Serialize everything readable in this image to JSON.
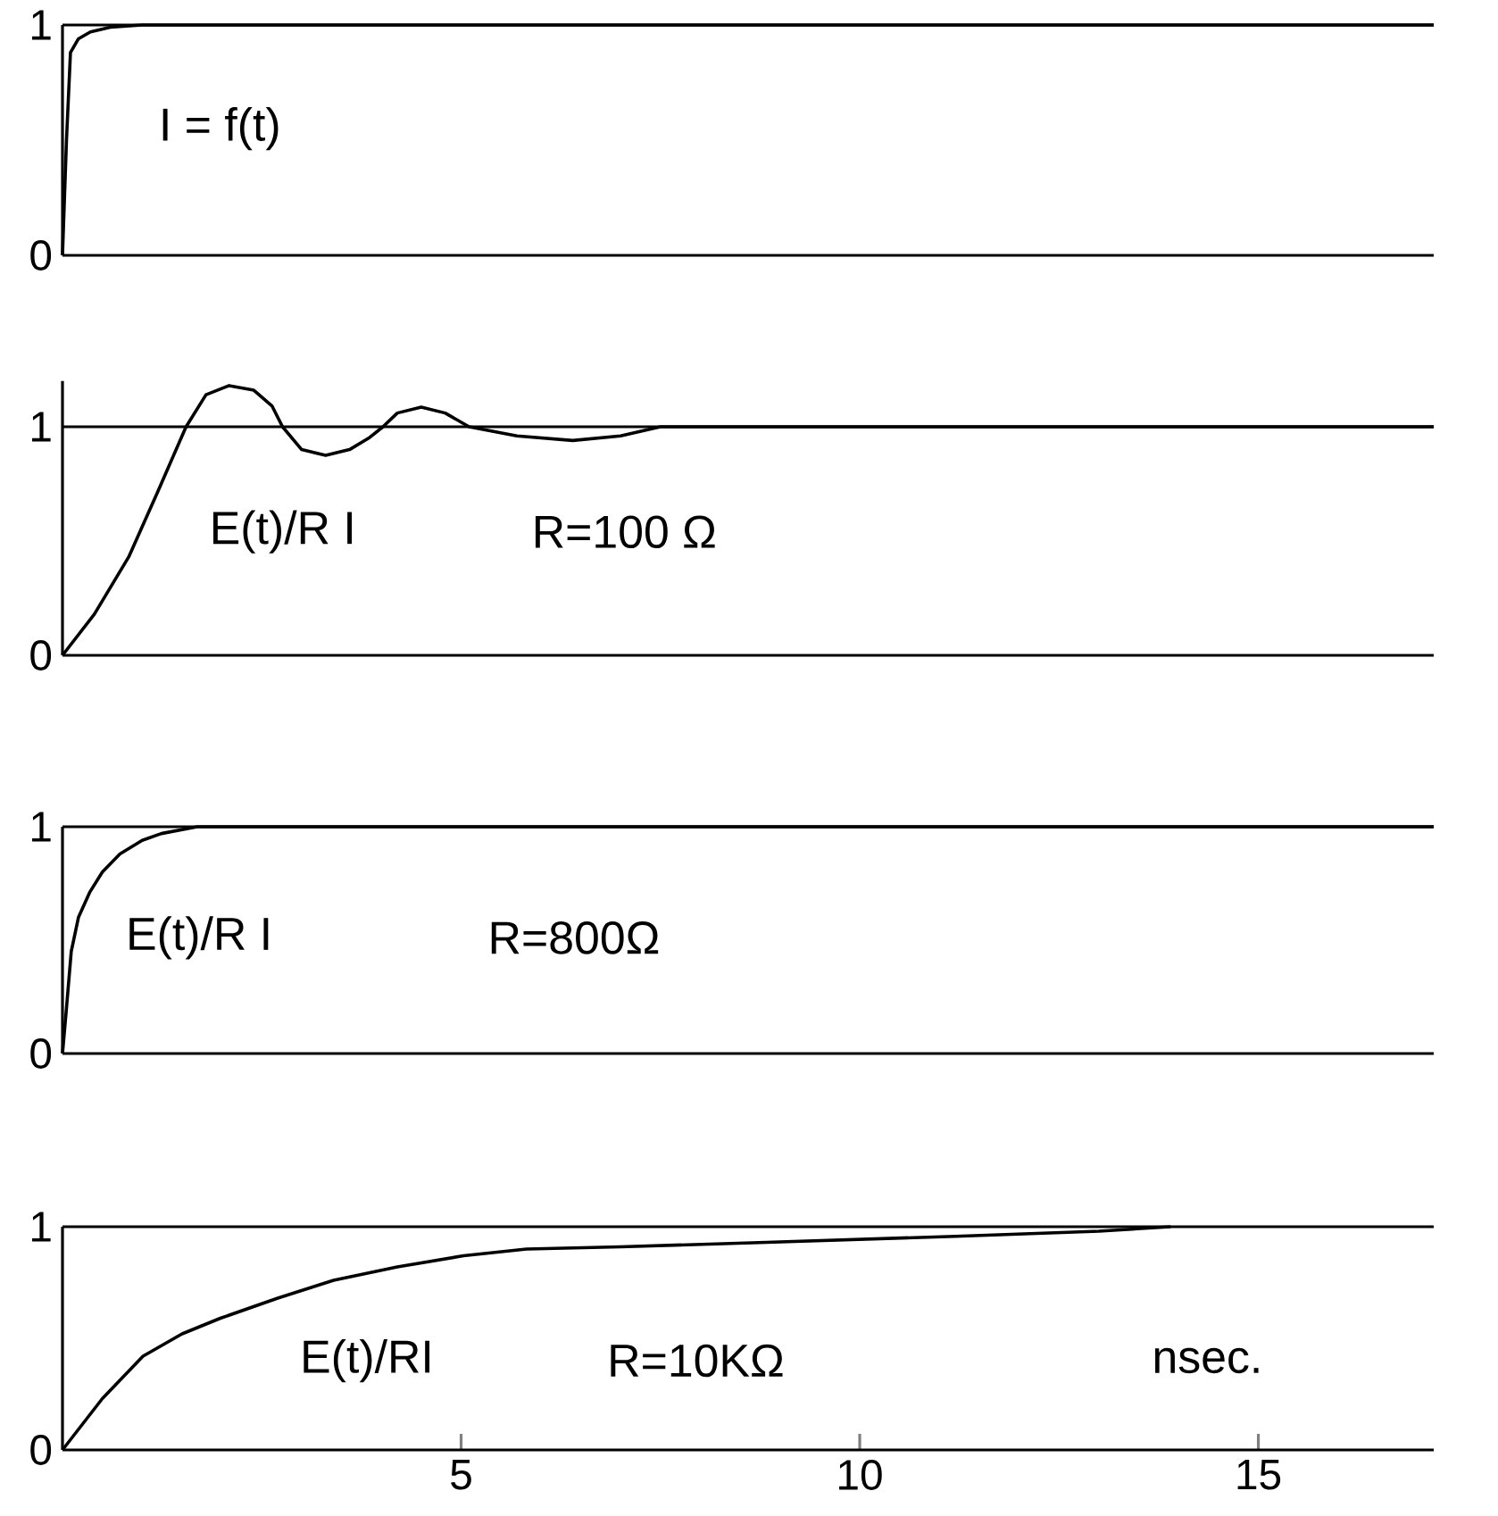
{
  "chart_data": [
    {
      "type": "line",
      "annotations": [
        "I = f(t)"
      ],
      "tick_labels": "y",
      "xlim": [
        0,
        17.2
      ],
      "ylim": [
        0,
        1
      ],
      "yticks": [
        0,
        1
      ],
      "ref_lines": [
        {
          "axis": "y",
          "value": 1
        }
      ],
      "series": [
        {
          "color": "#000000",
          "x": [
            0,
            0.05,
            0.1,
            0.2,
            0.35,
            0.6,
            1.0,
            17.2
          ],
          "values": [
            0,
            0.5,
            0.88,
            0.94,
            0.97,
            0.99,
            1.0,
            1.0
          ]
        }
      ]
    },
    {
      "type": "line",
      "annotations": [
        "E(t)/R I",
        "R=100 Ω"
      ],
      "tick_labels": "y",
      "xlim": [
        0,
        17.2
      ],
      "ylim": [
        0,
        1.2
      ],
      "yticks": [
        0,
        1
      ],
      "ref_lines": [
        {
          "axis": "y",
          "value": 1
        }
      ],
      "series": [
        {
          "color": "#000000",
          "x": [
            0,
            0.4,
            0.83,
            1.2,
            1.55,
            1.8,
            2.09,
            2.4,
            2.63,
            2.76,
            3.0,
            3.3,
            3.6,
            3.84,
            4.02,
            4.2,
            4.5,
            4.8,
            5.1,
            5.7,
            6.4,
            7.0,
            7.5,
            17.2
          ],
          "values": [
            0,
            0.18,
            0.43,
            0.72,
            1.0,
            1.14,
            1.18,
            1.16,
            1.09,
            1.0,
            0.9,
            0.875,
            0.9,
            0.95,
            1.0,
            1.06,
            1.086,
            1.06,
            1.0,
            0.96,
            0.94,
            0.96,
            1.0,
            1.0
          ]
        }
      ]
    },
    {
      "type": "line",
      "annotations": [
        "E(t)/R I",
        "R=800Ω"
      ],
      "tick_labels": "y",
      "xlim": [
        0,
        17.2
      ],
      "ylim": [
        0,
        1
      ],
      "yticks": [
        0,
        1
      ],
      "ref_lines": [
        {
          "axis": "y",
          "value": 1
        }
      ],
      "series": [
        {
          "color": "#000000",
          "x": [
            0,
            0.05,
            0.11,
            0.2,
            0.34,
            0.5,
            0.72,
            1.0,
            1.24,
            1.69,
            17.2
          ],
          "values": [
            0,
            0.2,
            0.45,
            0.6,
            0.71,
            0.8,
            0.88,
            0.94,
            0.97,
            1.0,
            1.0
          ]
        }
      ]
    },
    {
      "type": "line",
      "annotations": [
        "E(t)/RI",
        "R=10KΩ"
      ],
      "xlabel": "nsec.",
      "xlim": [
        0,
        17.2
      ],
      "ylim": [
        0,
        1
      ],
      "xticks": [
        5,
        10,
        15
      ],
      "yticks": [
        0,
        1
      ],
      "ref_lines": [
        {
          "axis": "y",
          "value": 1
        }
      ],
      "series": [
        {
          "color": "#000000",
          "x": [
            0,
            0.5,
            1.01,
            1.5,
            1.98,
            2.7,
            3.4,
            4.2,
            5.03,
            5.82,
            7.0,
            8.83,
            11.2,
            13.0,
            13.9
          ],
          "values": [
            0,
            0.23,
            0.42,
            0.52,
            0.59,
            0.68,
            0.76,
            0.82,
            0.87,
            0.9,
            0.91,
            0.93,
            0.957,
            0.98,
            1.0
          ]
        }
      ]
    }
  ]
}
